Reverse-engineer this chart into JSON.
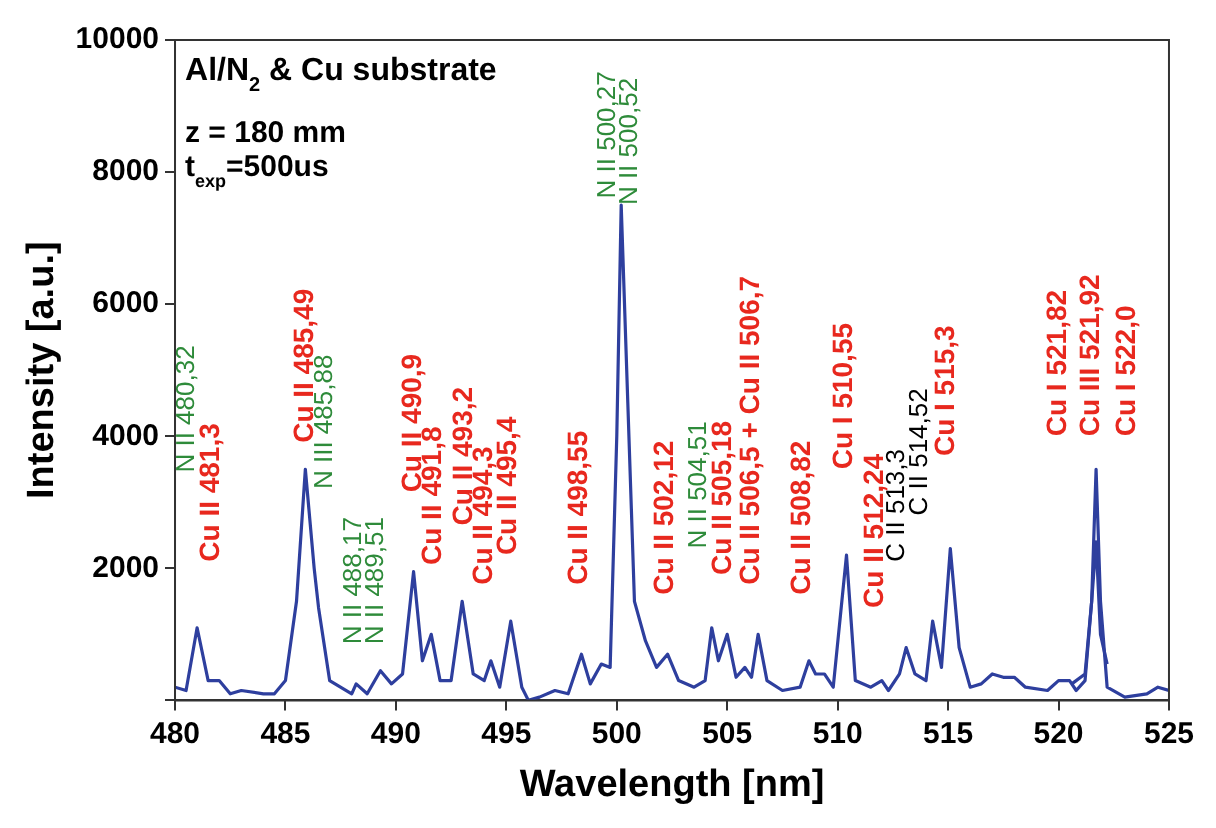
{
  "chart_data": {
    "type": "line",
    "xlabel": "Wavelength [nm]",
    "ylabel": "Intensity [a.u.]",
    "xlim": [
      480,
      525
    ],
    "xticks": [
      480,
      485,
      490,
      495,
      500,
      505,
      510,
      515,
      520,
      525
    ],
    "ylim": [
      0,
      10000
    ],
    "yticks": [
      {
        "value": 0,
        "label": null
      },
      2000,
      4000,
      6000,
      8000,
      10000
    ],
    "grid": false,
    "legend": false,
    "marker": "none",
    "line_style": "solid",
    "series": [
      {
        "color": "#2e3f9e",
        "x": [
          480,
          480.5,
          481,
          481.5,
          482,
          482.5,
          483,
          484,
          484.5,
          485,
          485.5,
          485.9,
          486.3,
          486.5,
          487,
          488,
          488.2,
          488.7,
          489.3,
          489.8,
          490.3,
          490.8,
          491.2,
          491.6,
          492,
          492.5,
          493,
          493.5,
          494,
          494.3,
          494.7,
          495.2,
          495.7,
          496,
          496.5,
          497.2,
          497.8,
          498.4,
          498.8,
          499.3,
          499.7,
          500,
          500.2,
          500.5,
          500.8,
          501.3,
          501.8,
          502.3,
          502.8,
          503.5,
          504,
          504.3,
          504.6,
          505,
          505.4,
          505.8,
          506.1,
          506.4,
          506.8,
          507.5,
          508.3,
          508.7,
          509,
          509.4,
          509.8,
          510.4,
          510.8,
          511.5,
          512,
          512.3,
          512.8,
          513.1,
          513.5,
          514,
          514.3,
          514.7,
          515.1,
          515.5,
          516,
          516.5,
          517,
          517.5,
          518,
          518.5,
          519.5,
          520,
          520.5,
          520.8,
          521.2,
          521.5,
          521.7,
          521.9,
          522.2,
          523,
          524,
          524.5,
          525
        ],
        "values": [
          200,
          150,
          1100,
          300,
          300,
          100,
          150,
          100,
          100,
          300,
          1500,
          3500,
          2000,
          1400,
          300,
          100,
          250,
          100,
          450,
          250,
          400,
          1950,
          600,
          1000,
          300,
          300,
          1500,
          400,
          300,
          600,
          200,
          1200,
          200,
          0,
          50,
          150,
          100,
          700,
          250,
          550,
          500,
          4000,
          7500,
          4500,
          1500,
          900,
          500,
          700,
          300,
          200,
          300,
          1100,
          600,
          1000,
          350,
          500,
          350,
          1000,
          300,
          150,
          200,
          600,
          400,
          400,
          200,
          2200,
          300,
          200,
          300,
          150,
          400,
          800,
          400,
          300,
          1200,
          500,
          2300,
          800,
          200,
          250,
          400,
          350,
          350,
          200,
          150,
          300,
          300,
          150,
          300,
          1500,
          3500,
          1500,
          200,
          50,
          100,
          200,
          150
        ]
      },
      {
        "color": "#2e3f9e",
        "x": [
          520.6,
          521.2,
          521.5,
          521.7,
          521.9,
          522.2
        ],
        "values": [
          250,
          400,
          1500,
          2400,
          1000,
          550
        ]
      }
    ],
    "annotations": [
      "Al/N$_{2}$ & Cu substrate",
      "z = 180 mm",
      "t$_{exp}$=500us",
      "N II 480,32",
      "Cu II 481,3",
      "Cu II 485,49",
      "N III 485,88",
      "N II 488,17",
      "N II 489,51",
      "Cu II 490,9",
      "Cu II 491,8",
      "Cu II 493,2",
      "Cu II 494,3",
      "Cu II 495,4",
      "Cu II 498,55",
      "N II 500,27",
      "N II 500,52",
      "Cu II 502,12",
      "N II 504,51",
      "Cu II 505,18",
      "Cu II 506,5 + Cu II 506,7",
      "Cu II 508,82",
      "Cu I 510,55",
      "Cu II 512,24",
      "C II 513,3",
      "C II 514,52",
      "Cu I 515,3",
      "Cu I 521,82",
      "Cu III 521,92",
      "Cu I 522,0"
    ]
  }
}
